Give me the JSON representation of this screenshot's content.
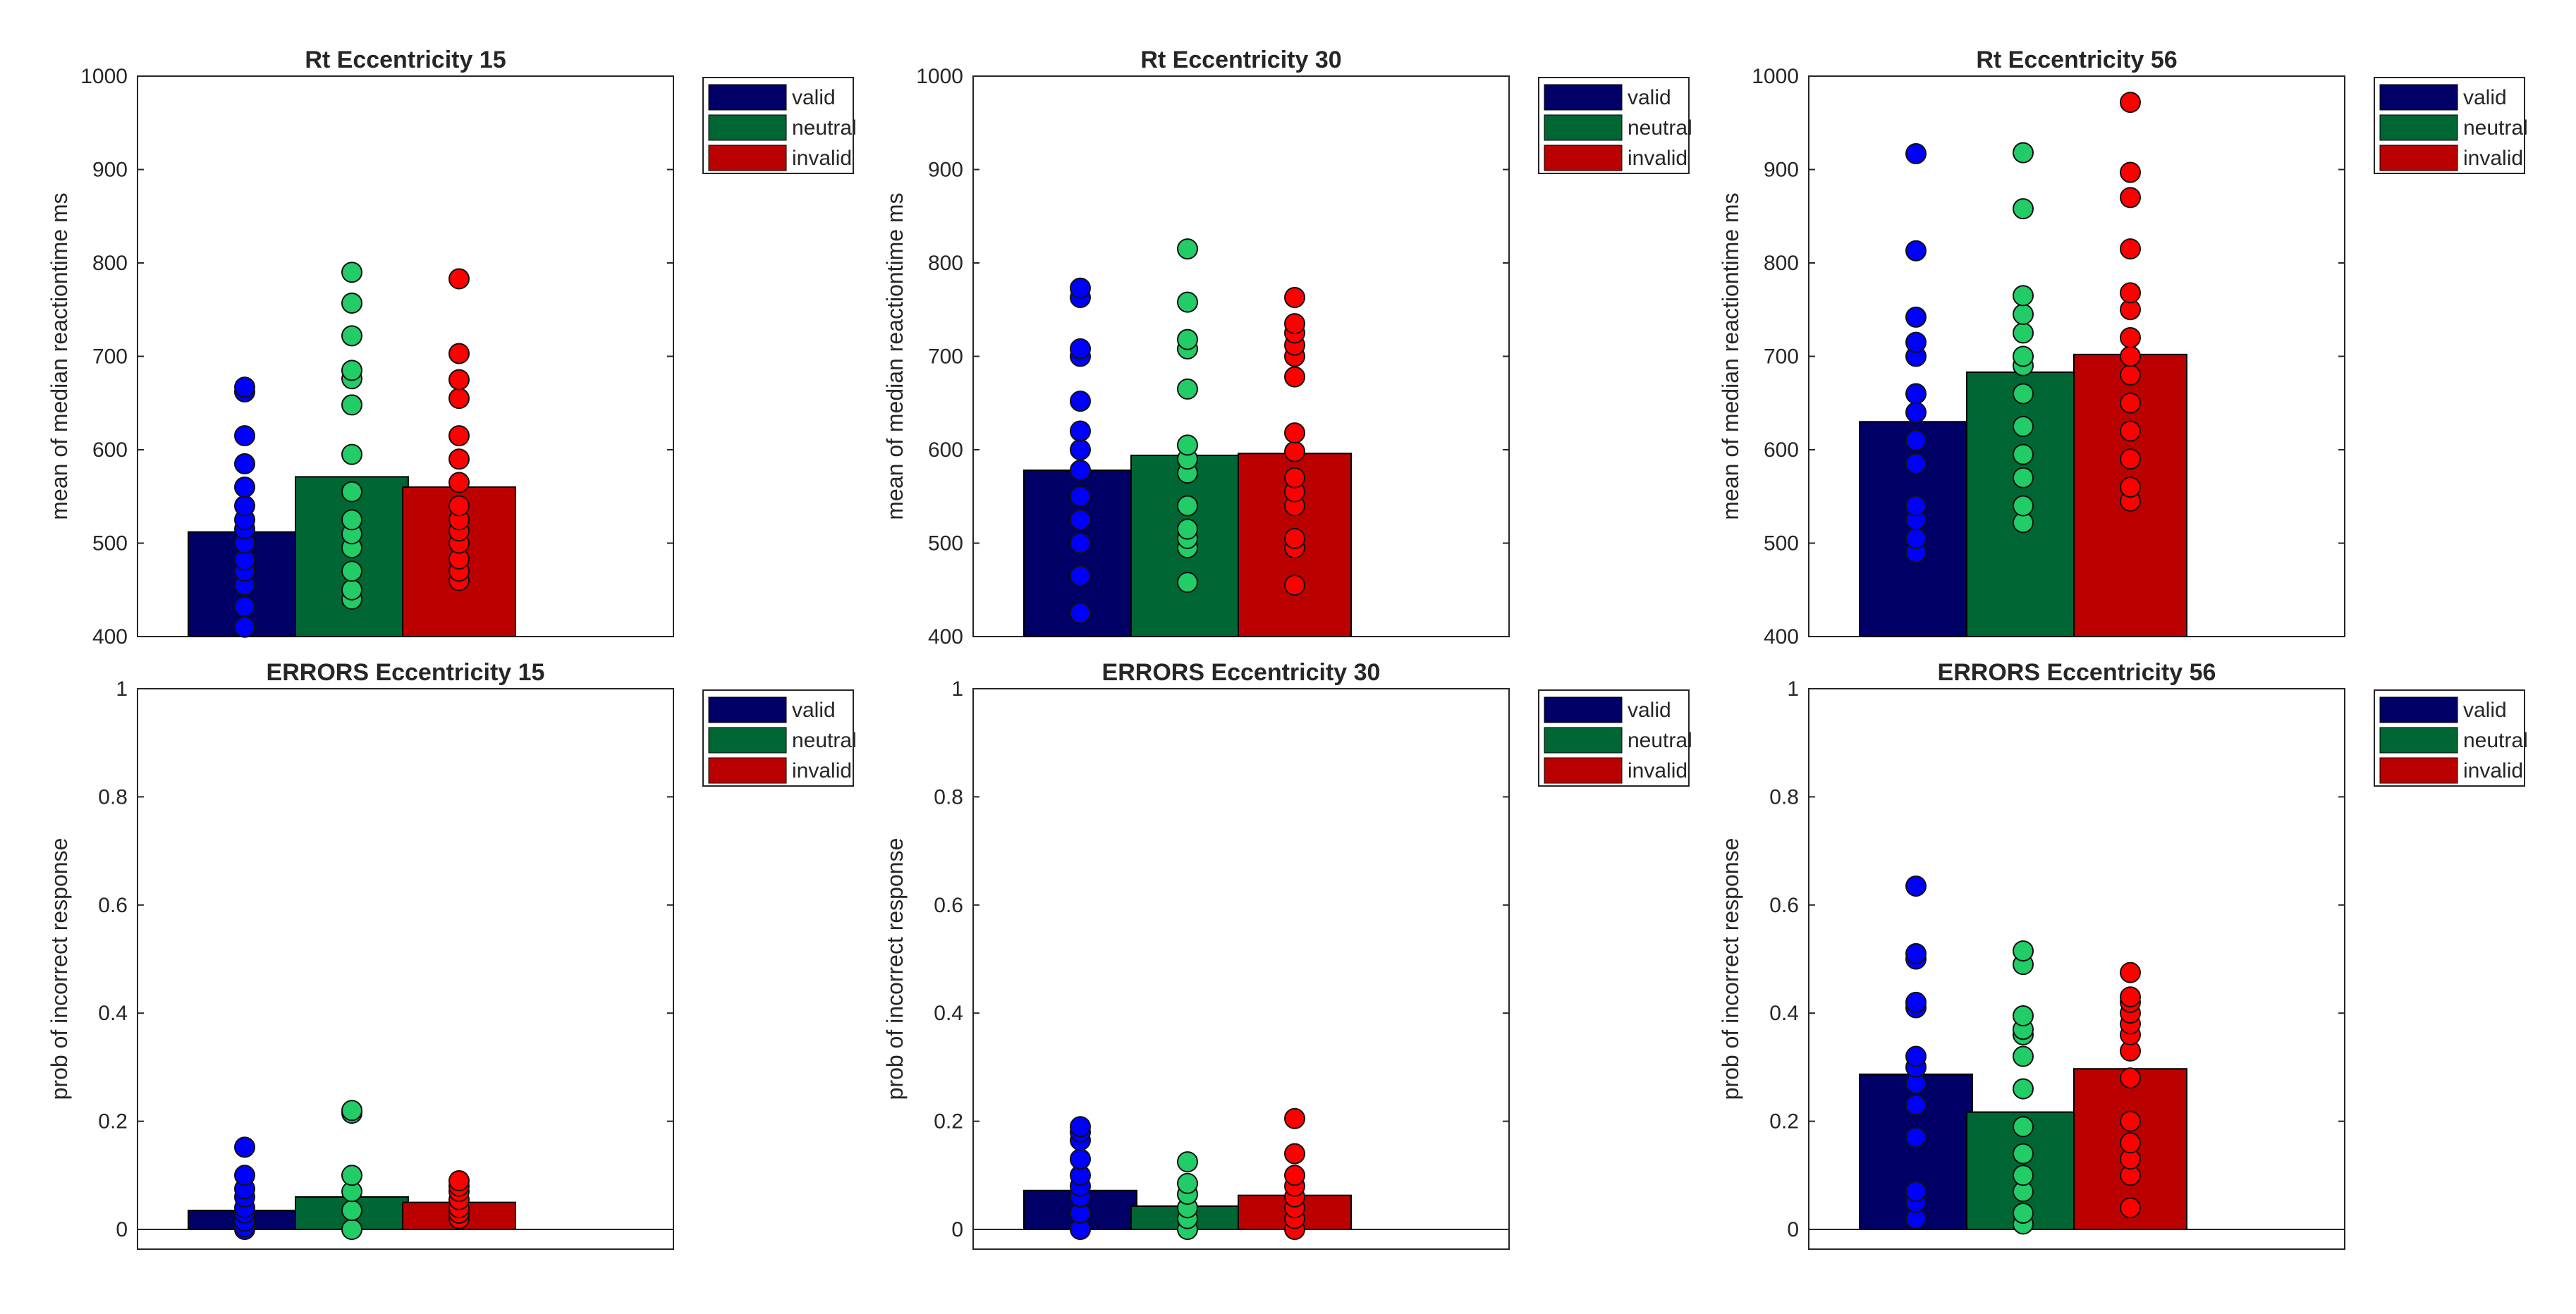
{
  "legend": [
    {
      "label": "valid",
      "color": "#000066"
    },
    {
      "label": "neutral",
      "color": "#006633"
    },
    {
      "label": "invalid",
      "color": "#bb0000"
    }
  ],
  "colors": {
    "valid_bar": "#000066",
    "neutral_bar": "#006633",
    "invalid_bar": "#bb0000",
    "valid_dot": "#0000ff",
    "neutral_dot": "#22cc66",
    "invalid_dot": "#ff0000"
  },
  "chart_data": [
    {
      "type": "bar",
      "title": "Rt Eccentricity 15",
      "ylabel": "mean of median reactiontime ms",
      "ylim": [
        400,
        1000
      ],
      "yticks": [
        "400",
        "500",
        "600",
        "700",
        "800",
        "900",
        "1000"
      ],
      "categories": [
        "valid",
        "neutral",
        "invalid"
      ],
      "values": [
        512,
        571,
        560
      ],
      "points": [
        [
          410,
          432,
          455,
          470,
          482,
          500,
          515,
          525,
          540,
          560,
          585,
          615,
          662,
          667
        ],
        [
          440,
          450,
          470,
          495,
          510,
          525,
          555,
          595,
          648,
          676,
          685,
          722,
          757,
          790
        ],
        [
          460,
          470,
          483,
          500,
          513,
          525,
          540,
          565,
          590,
          615,
          655,
          675,
          703,
          783
        ]
      ]
    },
    {
      "type": "bar",
      "title": "Rt Eccentricity 30",
      "ylabel": "mean of median reactiontime ms",
      "ylim": [
        400,
        1000
      ],
      "yticks": [
        "400",
        "500",
        "600",
        "700",
        "800",
        "900",
        "1000"
      ],
      "categories": [
        "valid",
        "neutral",
        "invalid"
      ],
      "values": [
        578,
        594,
        596
      ],
      "points": [
        [
          425,
          465,
          500,
          525,
          550,
          578,
          600,
          620,
          652,
          700,
          708,
          763,
          773
        ],
        [
          458,
          495,
          505,
          515,
          540,
          575,
          590,
          605,
          665,
          708,
          718,
          758,
          815
        ],
        [
          455,
          495,
          505,
          540,
          555,
          570,
          598,
          618,
          678,
          700,
          712,
          725,
          735,
          763
        ]
      ]
    },
    {
      "type": "bar",
      "title": "Rt Eccentricity 56",
      "ylabel": "mean of median reactiontime ms",
      "ylim": [
        400,
        1000
      ],
      "yticks": [
        "400",
        "500",
        "600",
        "700",
        "800",
        "900",
        "1000"
      ],
      "categories": [
        "valid",
        "neutral",
        "invalid"
      ],
      "values": [
        630,
        683,
        702
      ],
      "points": [
        [
          490,
          505,
          525,
          540,
          585,
          610,
          640,
          660,
          700,
          715,
          742,
          813,
          917
        ],
        [
          522,
          540,
          570,
          595,
          625,
          660,
          690,
          700,
          725,
          745,
          765,
          858,
          918
        ],
        [
          545,
          560,
          590,
          620,
          650,
          680,
          700,
          720,
          750,
          768,
          815,
          870,
          897,
          972
        ]
      ]
    },
    {
      "type": "bar",
      "title": "ERRORS Eccentricity 15",
      "ylabel": "prob of incorrect response",
      "ylim": [
        0,
        1
      ],
      "yticks": [
        "0",
        "0.2",
        "0.4",
        "0.6",
        "0.8",
        "1"
      ],
      "categories": [
        "valid",
        "neutral",
        "invalid"
      ],
      "values": [
        0.035,
        0.06,
        0.05
      ],
      "points": [
        [
          0,
          0.005,
          0.015,
          0.03,
          0.04,
          0.06,
          0.075,
          0.1,
          0.152
        ],
        [
          0,
          0.035,
          0.07,
          0.1,
          0.215,
          0.22
        ],
        [
          0.02,
          0.03,
          0.04,
          0.055,
          0.07,
          0.08,
          0.09
        ]
      ]
    },
    {
      "type": "bar",
      "title": "ERRORS Eccentricity 30",
      "ylabel": "prob of incorrect response",
      "ylim": [
        0,
        1
      ],
      "yticks": [
        "0",
        "0.2",
        "0.4",
        "0.6",
        "0.8",
        "1"
      ],
      "categories": [
        "valid",
        "neutral",
        "invalid"
      ],
      "values": [
        0.072,
        0.043,
        0.063
      ],
      "points": [
        [
          0,
          0.03,
          0.06,
          0.08,
          0.1,
          0.13,
          0.165,
          0.18,
          0.19
        ],
        [
          0,
          0.02,
          0.04,
          0.065,
          0.085,
          0.125
        ],
        [
          0,
          0.02,
          0.04,
          0.06,
          0.08,
          0.1,
          0.14,
          0.205
        ]
      ]
    },
    {
      "type": "bar",
      "title": "ERRORS Eccentricity 56",
      "ylabel": "prob of incorrect response",
      "ylim": [
        0,
        1
      ],
      "yticks": [
        "0",
        "0.2",
        "0.4",
        "0.6",
        "0.8",
        "1"
      ],
      "categories": [
        "valid",
        "neutral",
        "invalid"
      ],
      "values": [
        0.287,
        0.217,
        0.297
      ],
      "points": [
        [
          0.02,
          0.05,
          0.07,
          0.17,
          0.23,
          0.27,
          0.3,
          0.32,
          0.41,
          0.42,
          0.5,
          0.51,
          0.635
        ],
        [
          0.01,
          0.03,
          0.07,
          0.1,
          0.14,
          0.19,
          0.26,
          0.32,
          0.36,
          0.37,
          0.395,
          0.49,
          0.515
        ],
        [
          0.04,
          0.1,
          0.13,
          0.16,
          0.2,
          0.28,
          0.33,
          0.36,
          0.38,
          0.4,
          0.42,
          0.43,
          0.475
        ]
      ]
    }
  ]
}
